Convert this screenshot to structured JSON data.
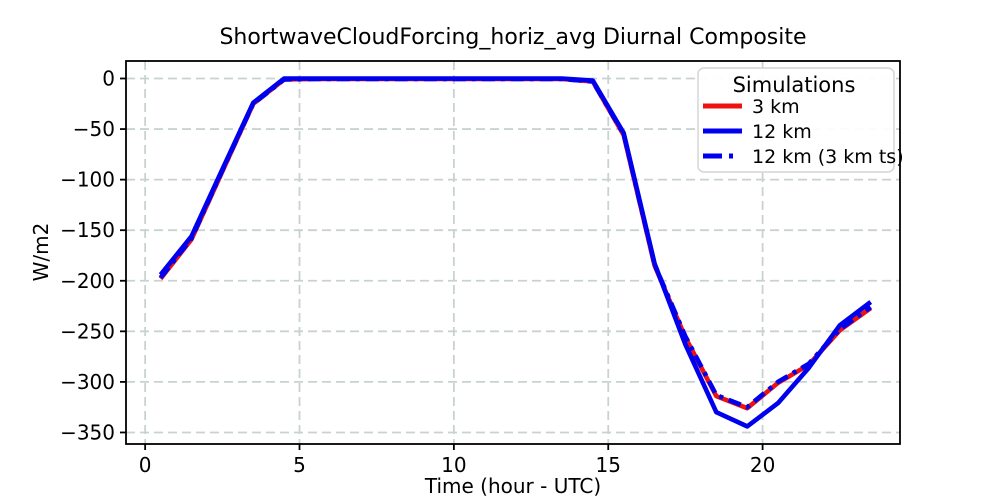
{
  "chart_data": {
    "type": "line",
    "title": "ShortwaveCloudForcing_horiz_avg Diurnal Composite",
    "xlabel": "Time (hour - UTC)",
    "ylabel": "W/m2",
    "xlim": [
      -0.62,
      24.45
    ],
    "ylim": [
      -361.4,
      17.3
    ],
    "xticks": [
      0,
      5,
      10,
      15,
      20
    ],
    "yticks": [
      0,
      -50,
      -100,
      -150,
      -200,
      -250,
      -300,
      -350
    ],
    "grid": true,
    "grid_style": "dashed",
    "grid_color": "#c9d2d2",
    "x": [
      0.5,
      1.5,
      2.5,
      3.5,
      4.5,
      5.5,
      6.5,
      7.5,
      8.5,
      9.5,
      10.5,
      11.5,
      12.5,
      13.5,
      14.5,
      15.5,
      16.5,
      17.5,
      18.5,
      19.5,
      20.5,
      21.5,
      22.5,
      23.5
    ],
    "series": [
      {
        "name": "3 km",
        "color": "#ee1111",
        "style": "solid",
        "values": [
          -198,
          -159,
          -92,
          -25,
          -1,
          -0.5,
          -0.5,
          -0.5,
          -0.5,
          -0.5,
          -0.5,
          -0.5,
          -0.5,
          -0.5,
          -3,
          -56,
          -185,
          -256,
          -314,
          -326,
          -301,
          -283,
          -249,
          -227
        ]
      },
      {
        "name": "12 km",
        "color": "#0000ee",
        "style": "solid",
        "values": [
          -194,
          -156,
          -90,
          -24,
          0,
          0,
          0,
          0,
          0,
          0,
          0,
          0,
          0,
          0,
          -2,
          -54,
          -183,
          -263,
          -330,
          -344,
          -321,
          -286,
          -244,
          -221
        ]
      },
      {
        "name": "12 km (3 km ts)",
        "color": "#0000ee",
        "style": "dashdot",
        "values": [
          -197,
          -158,
          -91,
          -25,
          -1,
          -0.5,
          -0.5,
          -0.5,
          -0.5,
          -0.5,
          -0.5,
          -0.5,
          -0.5,
          -0.5,
          -3,
          -55,
          -184,
          -255,
          -313,
          -325,
          -300,
          -282,
          -248,
          -226
        ]
      }
    ],
    "legend": {
      "title": "Simulations",
      "position": "upper right",
      "entries": [
        "3 km",
        "12 km",
        "12 km (3 km ts)"
      ]
    }
  },
  "colors": {
    "red_series": "#ee1111",
    "blue_series": "#0000ee",
    "grid": "#c9d2d2",
    "spine": "#000000",
    "legend_border": "#d3d3d3",
    "background": "#ffffff"
  }
}
